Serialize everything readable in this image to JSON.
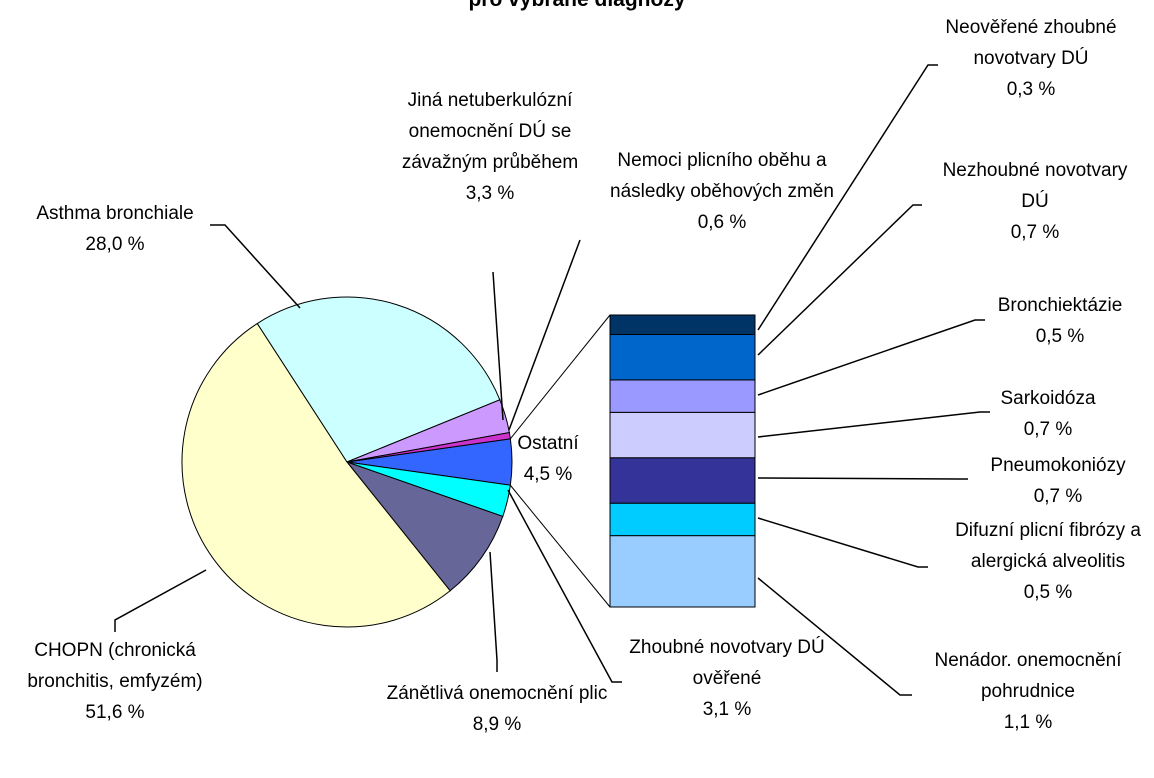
{
  "chart_data": {
    "type": "pie-of-bar",
    "title": "pro vybrané diagnózy",
    "pie": {
      "categories": [
        "Ostatní",
        "Zhoubné novotvary DÚ ověřené",
        "Zánětlivá onemocnění plic",
        "CHOPN (chronická bronchitis, emfyzém)",
        "Asthma bronchiale",
        "Jiná netuberkulózní onemocnění DÚ se závažným průběhem",
        "Nemoci plicního oběhu a následky oběhových změn"
      ],
      "values": [
        4.5,
        3.1,
        8.9,
        51.6,
        28.0,
        3.3,
        0.6
      ],
      "value_labels": [
        "4,5 %",
        "3,1 %",
        "8,9 %",
        "51,6 %",
        "28,0 %",
        "3,3 %",
        "0,6 %"
      ],
      "colors": [
        "#3366ff",
        "#00ffff",
        "#666699",
        "#ffffcc",
        "#ccffff",
        "#cc99ff",
        "#cc33cc"
      ]
    },
    "bar": {
      "categories": [
        "Nenádor. onemocnění pohrudnice",
        "Difuzní plicní fibrózy a alergická alveolitis",
        "Pneumokoniózy",
        "Sarkoidóza",
        "Bronchiektázie",
        "Nezhoubné novotvary DÚ",
        "Neověřené zhoubné novotvary DÚ"
      ],
      "values": [
        1.1,
        0.5,
        0.7,
        0.7,
        0.5,
        0.7,
        0.3
      ],
      "value_labels": [
        "1,1 %",
        "0,5 %",
        "0,7 %",
        "0,7 %",
        "0,5 %",
        "0,7 %",
        "0,3 %"
      ],
      "colors": [
        "#99ccff",
        "#00ccff",
        "#333399",
        "#ccccff",
        "#9999ff",
        "#0066cc",
        "#003366"
      ]
    }
  }
}
